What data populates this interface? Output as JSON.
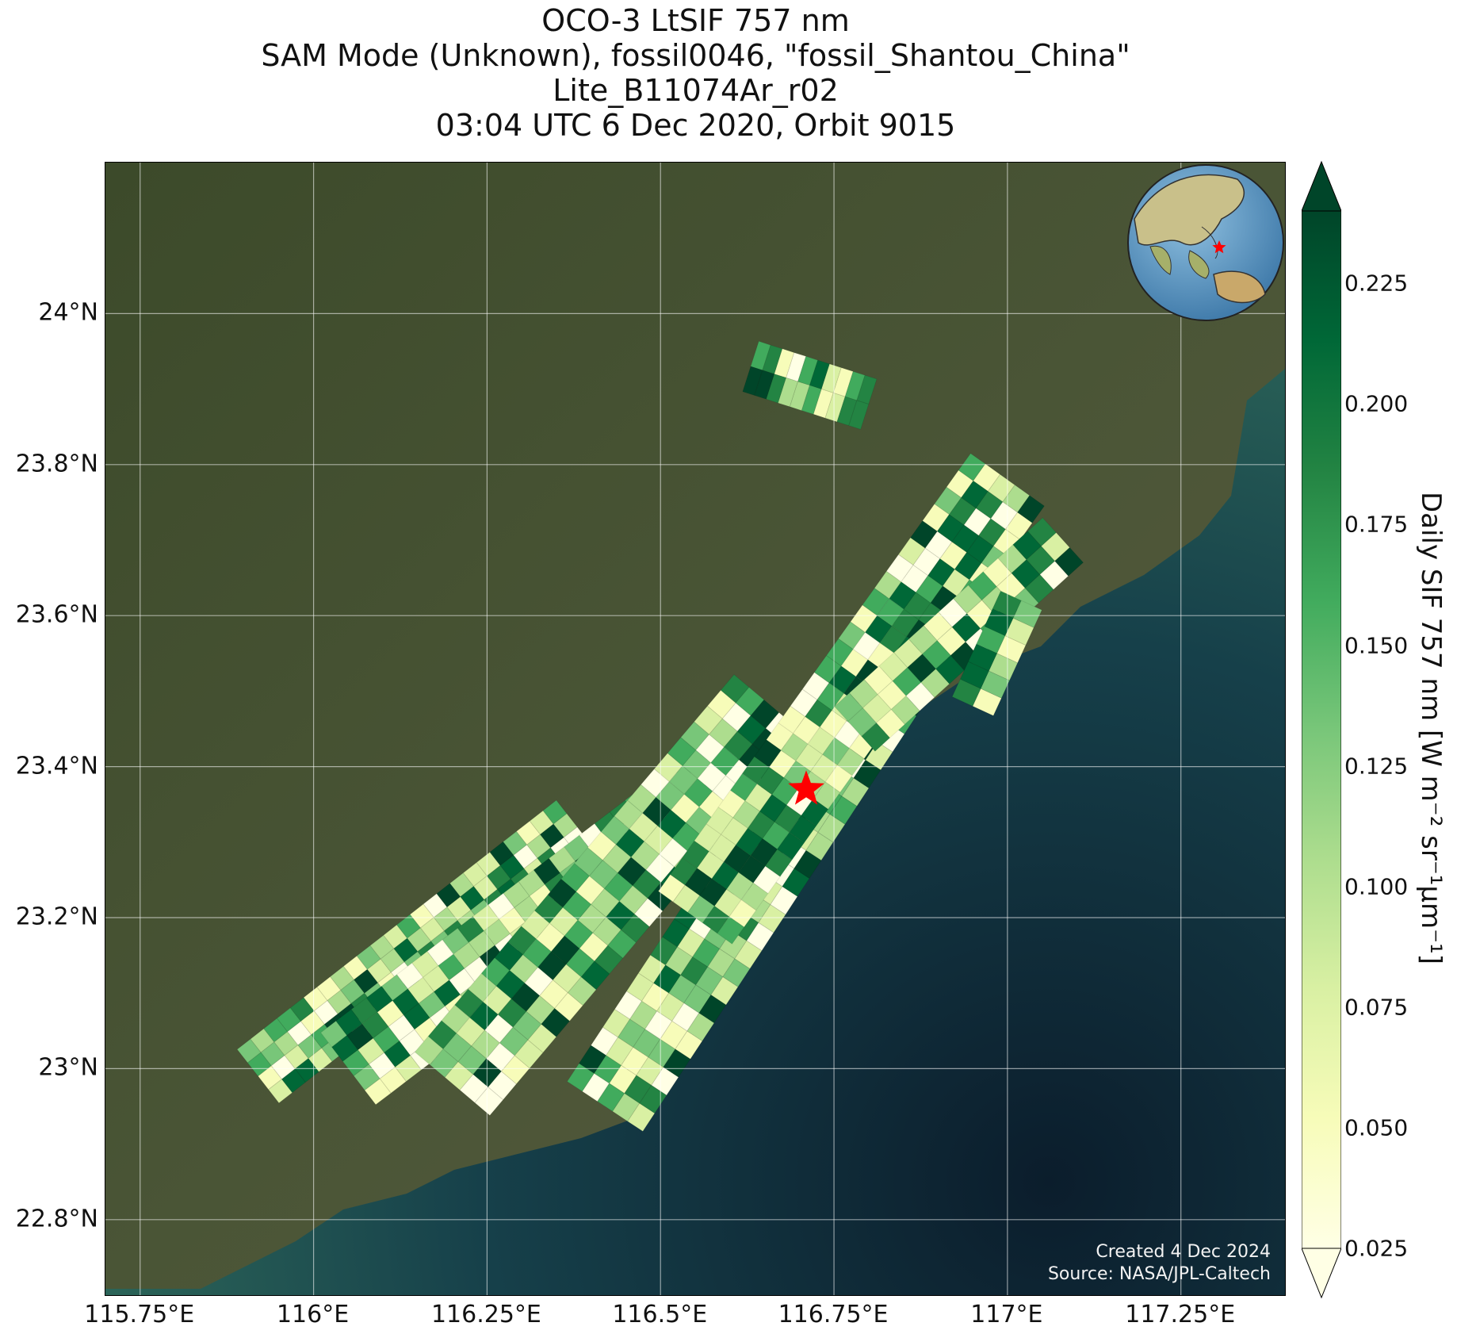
{
  "title_lines": [
    "OCO-3 LtSIF 757 nm",
    "SAM Mode (Unknown), fossil0046, \"fossil_Shantou_China\"",
    "Lite_B11074Ar_r02",
    "03:04 UTC 6 Dec 2020, Orbit 9015"
  ],
  "map": {
    "lon_range": [
      115.7,
      117.4
    ],
    "lat_range": [
      22.7,
      24.2
    ],
    "lon_ticks": [
      {
        "value": 115.75,
        "label": "115.75°E"
      },
      {
        "value": 116.0,
        "label": "116°E"
      },
      {
        "value": 116.25,
        "label": "116.25°E"
      },
      {
        "value": 116.5,
        "label": "116.5°E"
      },
      {
        "value": 116.75,
        "label": "116.75°E"
      },
      {
        "value": 117.0,
        "label": "117°E"
      },
      {
        "value": 117.25,
        "label": "117.25°E"
      }
    ],
    "lat_ticks": [
      {
        "value": 22.8,
        "label": "22.8°N"
      },
      {
        "value": 23.0,
        "label": "23°N"
      },
      {
        "value": 23.2,
        "label": "23.2°N"
      },
      {
        "value": 23.4,
        "label": "23.4°N"
      },
      {
        "value": 23.6,
        "label": "23.6°N"
      },
      {
        "value": 23.8,
        "label": "23.8°N"
      },
      {
        "value": 24.0,
        "label": "24°N"
      }
    ],
    "target": {
      "name": "fossil_Shantou_China",
      "lon": 116.71,
      "lat": 23.37,
      "marker_color": "#ff0000"
    },
    "grid": true,
    "land_color": "#3f4b2c",
    "ocean_color": "#0f2a38"
  },
  "swaths": [
    {
      "start": [
        115.92,
        22.99
      ],
      "end": [
        116.38,
        23.32
      ],
      "width": 0.045,
      "along": 24,
      "across": 4
    },
    {
      "start": [
        116.05,
        23.0
      ],
      "end": [
        116.62,
        23.4
      ],
      "width": 0.06,
      "along": 26,
      "across": 5
    },
    {
      "start": [
        116.2,
        22.98
      ],
      "end": [
        116.66,
        23.48
      ],
      "width": 0.065,
      "along": 24,
      "across": 5
    },
    {
      "start": [
        116.42,
        22.95
      ],
      "end": [
        116.9,
        23.62
      ],
      "width": 0.06,
      "along": 28,
      "across": 5
    },
    {
      "start": [
        116.55,
        23.2
      ],
      "end": [
        117.0,
        23.78
      ],
      "width": 0.06,
      "along": 26,
      "across": 5
    },
    {
      "start": [
        116.78,
        23.45
      ],
      "end": [
        117.08,
        23.7
      ],
      "width": 0.04,
      "along": 14,
      "across": 3
    },
    {
      "start": [
        116.63,
        23.93
      ],
      "end": [
        116.8,
        23.88
      ],
      "width": 0.035,
      "along": 10,
      "across": 2
    },
    {
      "start": [
        116.95,
        23.48
      ],
      "end": [
        117.02,
        23.62
      ],
      "width": 0.03,
      "along": 6,
      "across": 2
    }
  ],
  "colorbar": {
    "label": "Daily SIF 757 nm [W m⁻² sr⁻¹μm⁻¹]",
    "min": 0.025,
    "max": 0.24,
    "extend": "both",
    "cmap": "YlGn",
    "ticks": [
      "0.025",
      "0.050",
      "0.075",
      "0.100",
      "0.125",
      "0.150",
      "0.175",
      "0.200",
      "0.225"
    ]
  },
  "credit": {
    "line1": "Created 4 Dec 2024",
    "line2": "Source: NASA/JPL-Caltech"
  },
  "inset_globe": {
    "highlight": "red-star-marker"
  }
}
